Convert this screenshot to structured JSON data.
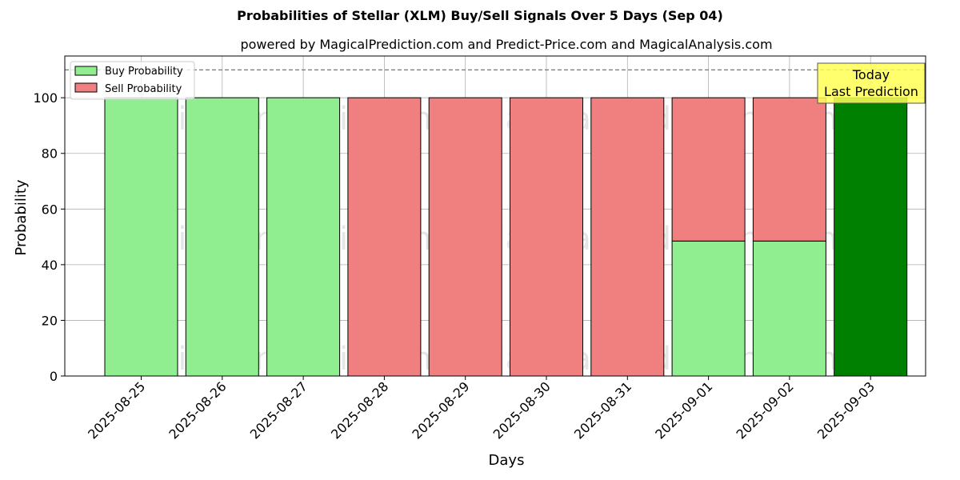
{
  "chart_data": {
    "type": "bar",
    "title": "Probabilities of Stellar (XLM) Buy/Sell Signals Over 5 Days (Sep 04)",
    "subtitle": "powered by MagicalPrediction.com and Predict-Price.com and MagicalAnalysis.com",
    "xlabel": "Days",
    "ylabel": "Probability",
    "ylim": [
      0,
      115
    ],
    "yticks": [
      0,
      20,
      40,
      60,
      80,
      100
    ],
    "reference_line": 110,
    "grid": true,
    "legend_position": "top-left",
    "categories": [
      "2025-08-25",
      "2025-08-26",
      "2025-08-27",
      "2025-08-28",
      "2025-08-29",
      "2025-08-30",
      "2025-08-31",
      "2025-09-01",
      "2025-09-02",
      "2025-09-03"
    ],
    "series": [
      {
        "name": "Buy Probability",
        "color": "#90ee90",
        "values": [
          100,
          100,
          100,
          0,
          0,
          0,
          0,
          48.5,
          48.5,
          100
        ]
      },
      {
        "name": "Sell Probability",
        "color": "#f08080",
        "values": [
          0,
          0,
          0,
          100,
          100,
          100,
          100,
          51.5,
          51.5,
          0
        ]
      }
    ],
    "highlight": {
      "index": 9,
      "color": "#008000"
    },
    "annotation": {
      "line1": "Today",
      "line2": "Last Prediction",
      "color": "#ffff55"
    },
    "watermarks": [
      "MagicalAnalysis.com",
      "MagicalPrediction.com"
    ]
  }
}
